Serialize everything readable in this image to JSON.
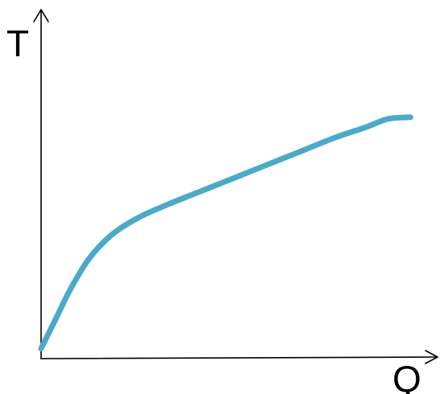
{
  "chart_data": {
    "type": "line",
    "title": "",
    "xlabel": "Q",
    "ylabel": "T",
    "ticks_shown": false,
    "grid": false,
    "xlim": [
      0,
      1
    ],
    "ylim": [
      0,
      1
    ],
    "series": [
      {
        "color": "#4aaac8",
        "points": [
          [
            0.0,
            0.03
          ],
          [
            0.04,
            0.12
          ],
          [
            0.08,
            0.21
          ],
          [
            0.13,
            0.3
          ],
          [
            0.19,
            0.37
          ],
          [
            0.26,
            0.42
          ],
          [
            0.34,
            0.46
          ],
          [
            0.43,
            0.5
          ],
          [
            0.52,
            0.54
          ],
          [
            0.61,
            0.58
          ],
          [
            0.7,
            0.62
          ],
          [
            0.79,
            0.66
          ],
          [
            0.87,
            0.69
          ],
          [
            0.93,
            0.715
          ],
          [
            0.99,
            0.72
          ]
        ]
      }
    ]
  }
}
